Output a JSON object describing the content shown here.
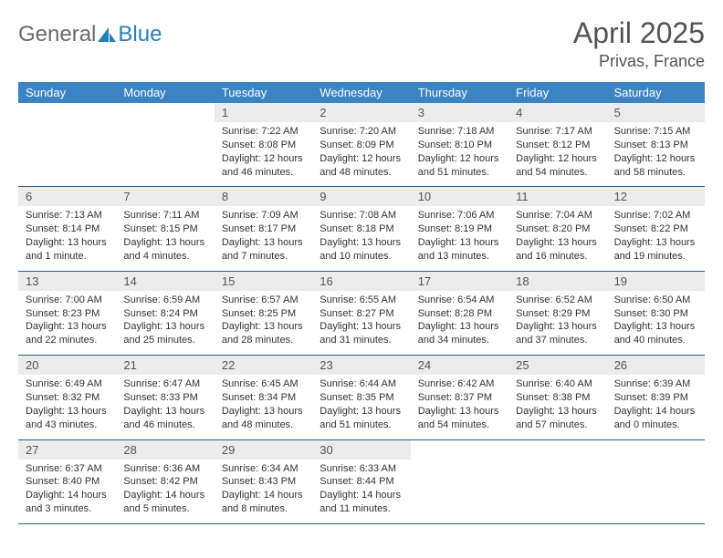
{
  "brand": {
    "part1": "General",
    "part2": "Blue"
  },
  "title": "April 2025",
  "location": "Privas, France",
  "colors": {
    "header_bg": "#3a84c4",
    "daynum_bg": "#ececec",
    "week_border": "#2a5a8a",
    "text": "#333333",
    "title_text": "#545454"
  },
  "layout": {
    "columns": 7,
    "rows": 5,
    "cell_font_size": 11,
    "header_font_size": 13,
    "title_font_size": 32,
    "location_font_size": 18
  },
  "weekdays": [
    "Sunday",
    "Monday",
    "Tuesday",
    "Wednesday",
    "Thursday",
    "Friday",
    "Saturday"
  ],
  "weeks": [
    [
      {
        "day": "",
        "sunrise": "",
        "sunset": "",
        "daylight": ""
      },
      {
        "day": "",
        "sunrise": "",
        "sunset": "",
        "daylight": ""
      },
      {
        "day": "1",
        "sunrise": "Sunrise: 7:22 AM",
        "sunset": "Sunset: 8:08 PM",
        "daylight": "Daylight: 12 hours and 46 minutes."
      },
      {
        "day": "2",
        "sunrise": "Sunrise: 7:20 AM",
        "sunset": "Sunset: 8:09 PM",
        "daylight": "Daylight: 12 hours and 48 minutes."
      },
      {
        "day": "3",
        "sunrise": "Sunrise: 7:18 AM",
        "sunset": "Sunset: 8:10 PM",
        "daylight": "Daylight: 12 hours and 51 minutes."
      },
      {
        "day": "4",
        "sunrise": "Sunrise: 7:17 AM",
        "sunset": "Sunset: 8:12 PM",
        "daylight": "Daylight: 12 hours and 54 minutes."
      },
      {
        "day": "5",
        "sunrise": "Sunrise: 7:15 AM",
        "sunset": "Sunset: 8:13 PM",
        "daylight": "Daylight: 12 hours and 58 minutes."
      }
    ],
    [
      {
        "day": "6",
        "sunrise": "Sunrise: 7:13 AM",
        "sunset": "Sunset: 8:14 PM",
        "daylight": "Daylight: 13 hours and 1 minute."
      },
      {
        "day": "7",
        "sunrise": "Sunrise: 7:11 AM",
        "sunset": "Sunset: 8:15 PM",
        "daylight": "Daylight: 13 hours and 4 minutes."
      },
      {
        "day": "8",
        "sunrise": "Sunrise: 7:09 AM",
        "sunset": "Sunset: 8:17 PM",
        "daylight": "Daylight: 13 hours and 7 minutes."
      },
      {
        "day": "9",
        "sunrise": "Sunrise: 7:08 AM",
        "sunset": "Sunset: 8:18 PM",
        "daylight": "Daylight: 13 hours and 10 minutes."
      },
      {
        "day": "10",
        "sunrise": "Sunrise: 7:06 AM",
        "sunset": "Sunset: 8:19 PM",
        "daylight": "Daylight: 13 hours and 13 minutes."
      },
      {
        "day": "11",
        "sunrise": "Sunrise: 7:04 AM",
        "sunset": "Sunset: 8:20 PM",
        "daylight": "Daylight: 13 hours and 16 minutes."
      },
      {
        "day": "12",
        "sunrise": "Sunrise: 7:02 AM",
        "sunset": "Sunset: 8:22 PM",
        "daylight": "Daylight: 13 hours and 19 minutes."
      }
    ],
    [
      {
        "day": "13",
        "sunrise": "Sunrise: 7:00 AM",
        "sunset": "Sunset: 8:23 PM",
        "daylight": "Daylight: 13 hours and 22 minutes."
      },
      {
        "day": "14",
        "sunrise": "Sunrise: 6:59 AM",
        "sunset": "Sunset: 8:24 PM",
        "daylight": "Daylight: 13 hours and 25 minutes."
      },
      {
        "day": "15",
        "sunrise": "Sunrise: 6:57 AM",
        "sunset": "Sunset: 8:25 PM",
        "daylight": "Daylight: 13 hours and 28 minutes."
      },
      {
        "day": "16",
        "sunrise": "Sunrise: 6:55 AM",
        "sunset": "Sunset: 8:27 PM",
        "daylight": "Daylight: 13 hours and 31 minutes."
      },
      {
        "day": "17",
        "sunrise": "Sunrise: 6:54 AM",
        "sunset": "Sunset: 8:28 PM",
        "daylight": "Daylight: 13 hours and 34 minutes."
      },
      {
        "day": "18",
        "sunrise": "Sunrise: 6:52 AM",
        "sunset": "Sunset: 8:29 PM",
        "daylight": "Daylight: 13 hours and 37 minutes."
      },
      {
        "day": "19",
        "sunrise": "Sunrise: 6:50 AM",
        "sunset": "Sunset: 8:30 PM",
        "daylight": "Daylight: 13 hours and 40 minutes."
      }
    ],
    [
      {
        "day": "20",
        "sunrise": "Sunrise: 6:49 AM",
        "sunset": "Sunset: 8:32 PM",
        "daylight": "Daylight: 13 hours and 43 minutes."
      },
      {
        "day": "21",
        "sunrise": "Sunrise: 6:47 AM",
        "sunset": "Sunset: 8:33 PM",
        "daylight": "Daylight: 13 hours and 46 minutes."
      },
      {
        "day": "22",
        "sunrise": "Sunrise: 6:45 AM",
        "sunset": "Sunset: 8:34 PM",
        "daylight": "Daylight: 13 hours and 48 minutes."
      },
      {
        "day": "23",
        "sunrise": "Sunrise: 6:44 AM",
        "sunset": "Sunset: 8:35 PM",
        "daylight": "Daylight: 13 hours and 51 minutes."
      },
      {
        "day": "24",
        "sunrise": "Sunrise: 6:42 AM",
        "sunset": "Sunset: 8:37 PM",
        "daylight": "Daylight: 13 hours and 54 minutes."
      },
      {
        "day": "25",
        "sunrise": "Sunrise: 6:40 AM",
        "sunset": "Sunset: 8:38 PM",
        "daylight": "Daylight: 13 hours and 57 minutes."
      },
      {
        "day": "26",
        "sunrise": "Sunrise: 6:39 AM",
        "sunset": "Sunset: 8:39 PM",
        "daylight": "Daylight: 14 hours and 0 minutes."
      }
    ],
    [
      {
        "day": "27",
        "sunrise": "Sunrise: 6:37 AM",
        "sunset": "Sunset: 8:40 PM",
        "daylight": "Daylight: 14 hours and 3 minutes."
      },
      {
        "day": "28",
        "sunrise": "Sunrise: 6:36 AM",
        "sunset": "Sunset: 8:42 PM",
        "daylight": "Daylight: 14 hours and 5 minutes."
      },
      {
        "day": "29",
        "sunrise": "Sunrise: 6:34 AM",
        "sunset": "Sunset: 8:43 PM",
        "daylight": "Daylight: 14 hours and 8 minutes."
      },
      {
        "day": "30",
        "sunrise": "Sunrise: 6:33 AM",
        "sunset": "Sunset: 8:44 PM",
        "daylight": "Daylight: 14 hours and 11 minutes."
      },
      {
        "day": "",
        "sunrise": "",
        "sunset": "",
        "daylight": ""
      },
      {
        "day": "",
        "sunrise": "",
        "sunset": "",
        "daylight": ""
      },
      {
        "day": "",
        "sunrise": "",
        "sunset": "",
        "daylight": ""
      }
    ]
  ]
}
